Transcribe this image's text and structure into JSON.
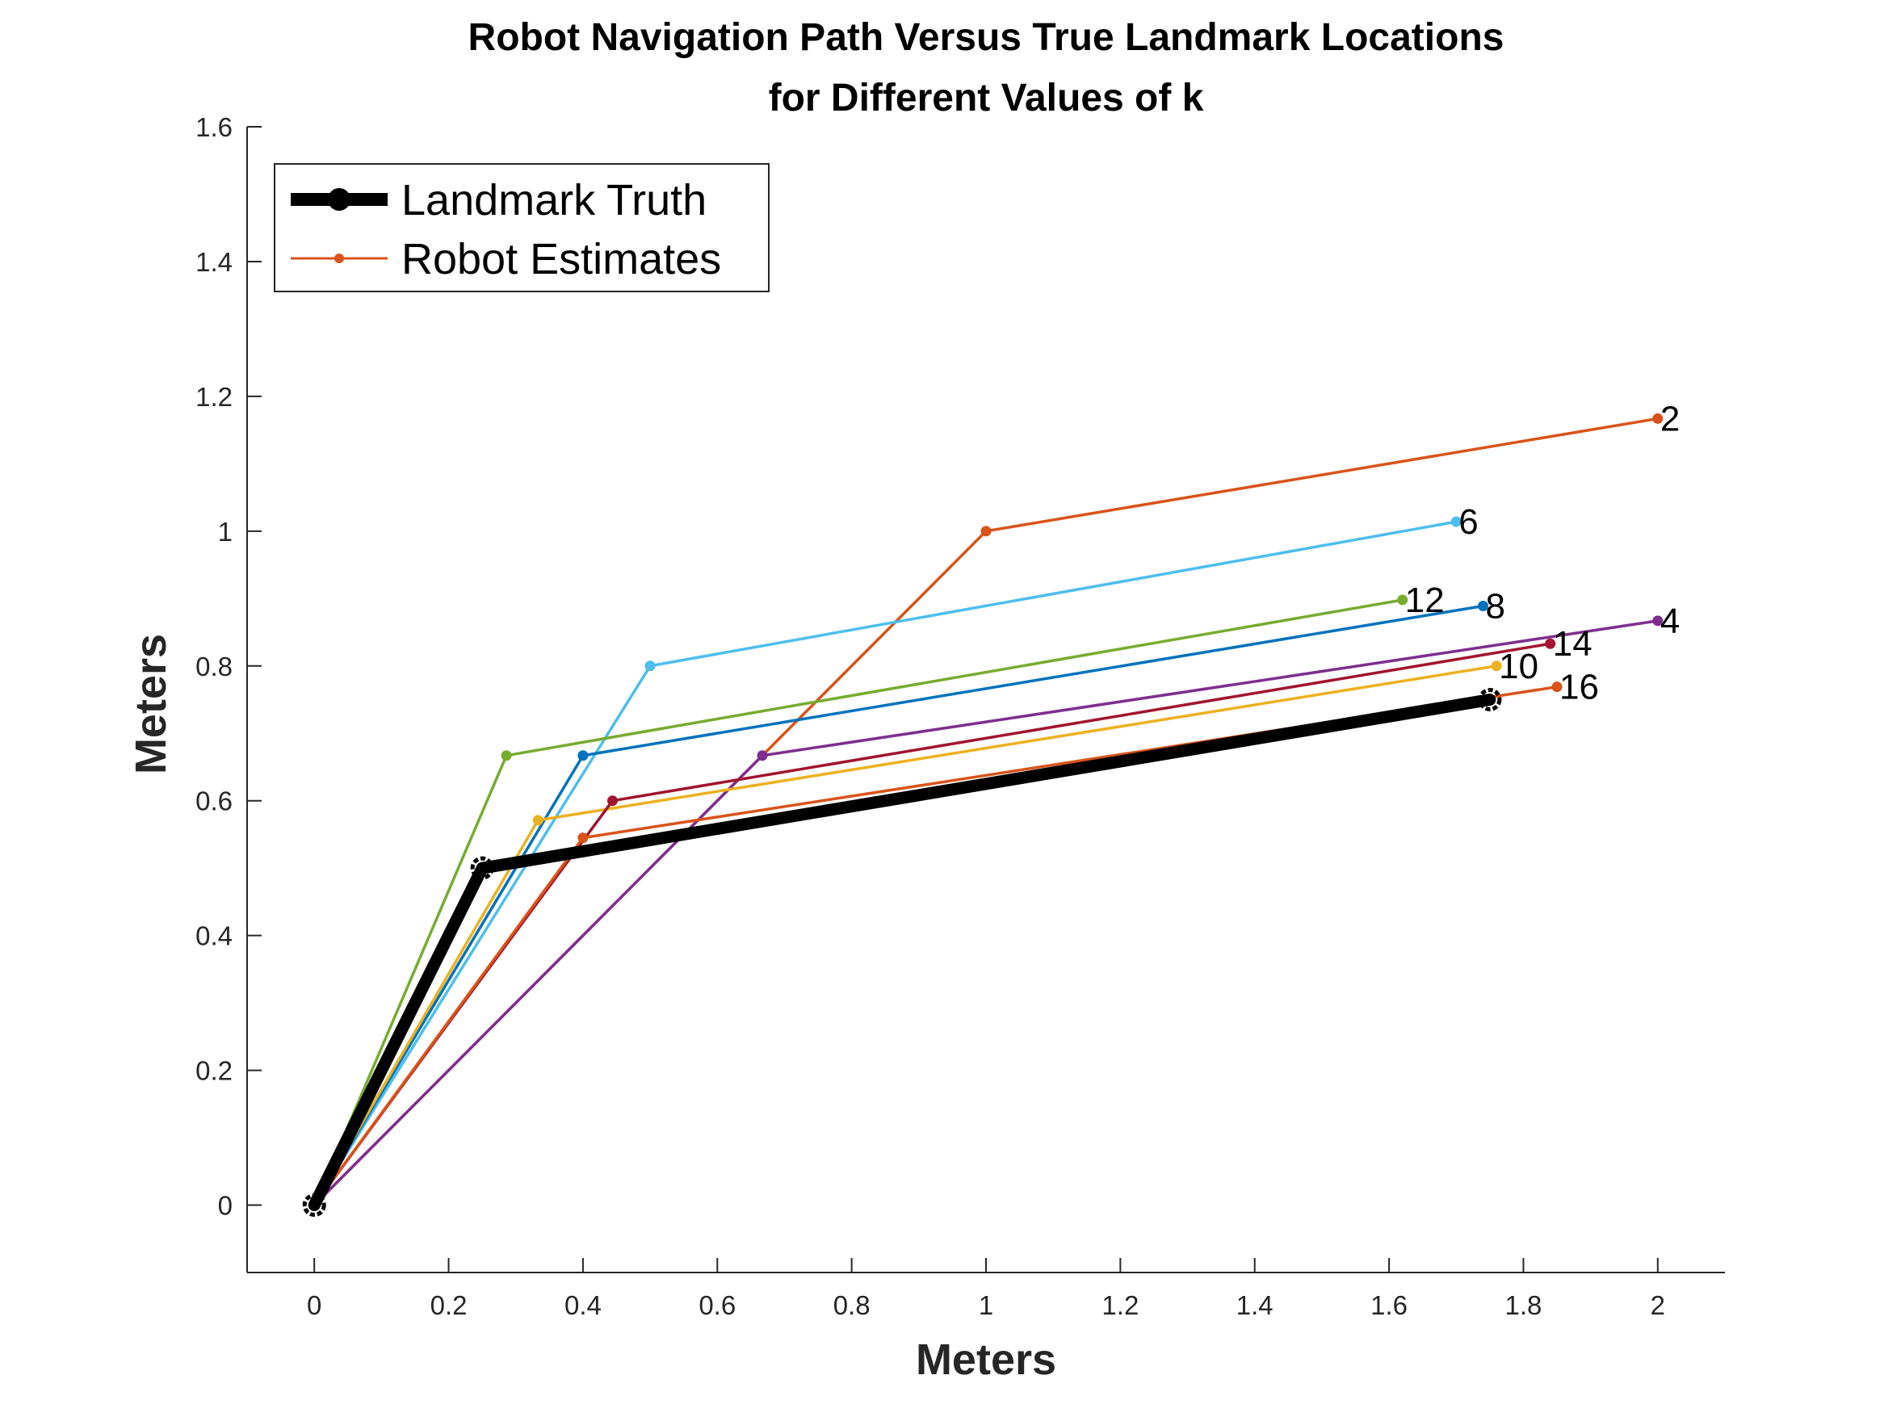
{
  "chart_data": {
    "type": "line",
    "title": [
      "Robot Navigation Path Versus True Landmark Locations",
      "for Different Values of k"
    ],
    "xlabel": "Meters",
    "ylabel": "Meters",
    "xlim": [
      -0.1,
      2.1
    ],
    "ylim": [
      -0.1,
      1.6
    ],
    "xticks": [
      0,
      0.2,
      0.4,
      0.6,
      0.8,
      1,
      1.2,
      1.4,
      1.6,
      1.8,
      2
    ],
    "xtick_labels": [
      "0",
      "0.2",
      "0.4",
      "0.6",
      "0.8",
      "1",
      "1.2",
      "1.4",
      "1.6",
      "1.8",
      "2"
    ],
    "yticks": [
      0,
      0.2,
      0.4,
      0.6,
      0.8,
      1,
      1.2,
      1.4,
      1.6
    ],
    "ytick_labels": [
      "0",
      "0.2",
      "0.4",
      "0.6",
      "0.8",
      "1",
      "1.2",
      "1.4",
      "1.6"
    ],
    "grid": false,
    "legend": {
      "placement": "top-left",
      "entries": [
        "Landmark Truth",
        "Robot Estimates"
      ]
    },
    "truth": {
      "name": "Landmark Truth",
      "color": "#000000",
      "x": [
        0,
        0.25,
        1.75
      ],
      "y": [
        0,
        0.5,
        0.75
      ]
    },
    "series": [
      {
        "label": "2",
        "color": "#d95319",
        "x": [
          0,
          1.0,
          2.0
        ],
        "y": [
          0,
          1.0,
          1.167
        ]
      },
      {
        "label": "4",
        "color": "#7e2f8e",
        "x": [
          0,
          0.667,
          2.0
        ],
        "y": [
          0,
          0.667,
          0.867
        ]
      },
      {
        "label": "6",
        "color": "#4dbeee",
        "x": [
          0,
          0.5,
          1.7
        ],
        "y": [
          0,
          0.8,
          1.014
        ]
      },
      {
        "label": "8",
        "color": "#0072bd",
        "x": [
          0,
          0.4,
          1.74
        ],
        "y": [
          0,
          0.667,
          0.889
        ]
      },
      {
        "label": "10",
        "color": "#edb120",
        "x": [
          0,
          0.333,
          1.76
        ],
        "y": [
          0,
          0.571,
          0.8
        ]
      },
      {
        "label": "12",
        "color": "#77ac30",
        "x": [
          0,
          0.286,
          1.62
        ],
        "y": [
          0,
          0.667,
          0.898
        ]
      },
      {
        "label": "14",
        "color": "#a2142f",
        "x": [
          0,
          0.444,
          1.84
        ],
        "y": [
          0,
          0.6,
          0.833
        ]
      },
      {
        "label": "16",
        "color": "#d95319",
        "x": [
          0,
          0.4,
          1.85
        ],
        "y": [
          0,
          0.545,
          0.769
        ]
      }
    ]
  }
}
